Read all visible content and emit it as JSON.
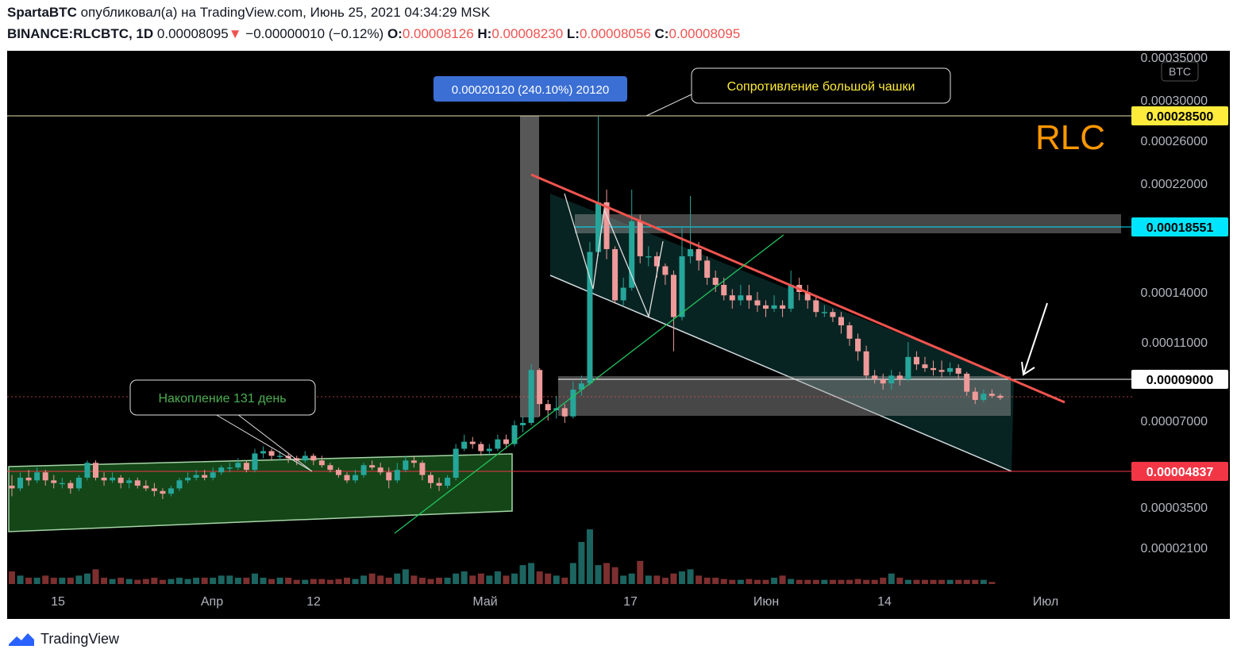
{
  "header": {
    "author": "SpartaBTC",
    "published_text": "опубликовал(а) на TradingView.com, Июнь 25, 2021 04:34:29 MSK",
    "symbol": "BINANCE:RLCBTC, 1D",
    "last": "0.00008095",
    "change_arrow": "▼",
    "change": "−0.00000010 (−0.12%)",
    "o_label": "O:",
    "o_value": "0.00008126",
    "h_label": "H:",
    "h_value": "0.00008230",
    "l_label": "L:",
    "l_value": "0.00008056",
    "c_label": "C:",
    "c_value": "0.00008095"
  },
  "footer": {
    "brand": "TradingView"
  },
  "chart_data": {
    "type": "candlestick",
    "currency_label": "BTC",
    "watermark": "RLC",
    "y_ticks": [
      "0.00035000",
      "0.00030000",
      "0.00026000",
      "0.00022000",
      "0.00014000",
      "0.00011000",
      "0.00007000",
      "0.00003500",
      "0.00002100"
    ],
    "y_tick_values": [
      0.00035,
      0.0003,
      0.00026,
      0.00022,
      0.00014,
      0.00011,
      7e-05,
      3.5e-05,
      2.1e-05
    ],
    "x_ticks": [
      "15",
      "Апр",
      "12",
      "Май",
      "17",
      "Июн",
      "14",
      "Июл"
    ],
    "price_labels": [
      {
        "text": "0.00028500",
        "value": 0.000285,
        "color": "#ffeb3b",
        "text_color": "#000000"
      },
      {
        "text": "0.00018551",
        "value": 0.00018551,
        "color": "#00e5ff",
        "text_color": "#000000"
      },
      {
        "text": "0.00009000",
        "value": 9e-05,
        "color": "#ffffff",
        "text_color": "#000000"
      },
      {
        "text": "0.00004837",
        "value": 4.837e-05,
        "color": "#f23645",
        "text_color": "#ffffff"
      }
    ],
    "annotations": {
      "measure": "0.00020120 (240.10%) 20120",
      "resistance": "Сопротивление большой чашки",
      "accumulation": "Накопление 131 день"
    },
    "colors": {
      "up": "#26a69a",
      "down": "#ef9a9a",
      "trend": "#f0544f",
      "support": "#22c55e"
    },
    "candles": [
      [
        4.3,
        4.2,
        4.7,
        3.9
      ],
      [
        4.2,
        4.6,
        4.8,
        4.1
      ],
      [
        4.6,
        4.5,
        4.9,
        4.3
      ],
      [
        4.5,
        4.8,
        5.0,
        4.4
      ],
      [
        4.8,
        4.5,
        4.9,
        4.3
      ],
      [
        4.5,
        4.4,
        4.7,
        4.2
      ],
      [
        4.4,
        4.4,
        4.6,
        4.2
      ],
      [
        4.4,
        4.2,
        4.5,
        4.0
      ],
      [
        4.2,
        4.6,
        4.7,
        4.1
      ],
      [
        4.6,
        5.2,
        5.3,
        4.5
      ],
      [
        5.2,
        4.6,
        5.3,
        4.5
      ],
      [
        4.6,
        4.5,
        4.8,
        4.3
      ],
      [
        4.5,
        4.6,
        4.8,
        4.4
      ],
      [
        4.6,
        4.4,
        4.7,
        4.2
      ],
      [
        4.4,
        4.5,
        4.6,
        4.2
      ],
      [
        4.5,
        4.3,
        4.6,
        4.2
      ],
      [
        4.3,
        4.2,
        4.5,
        4.1
      ],
      [
        4.2,
        4.1,
        4.4,
        3.9
      ],
      [
        4.1,
        4.0,
        4.2,
        3.8
      ],
      [
        4.0,
        4.2,
        4.3,
        3.9
      ],
      [
        4.2,
        4.5,
        4.6,
        4.1
      ],
      [
        4.5,
        4.6,
        4.8,
        4.4
      ],
      [
        4.6,
        4.7,
        4.9,
        4.5
      ],
      [
        4.7,
        4.6,
        4.9,
        4.5
      ],
      [
        4.6,
        4.8,
        5.0,
        4.5
      ],
      [
        4.8,
        5.0,
        5.1,
        4.7
      ],
      [
        5.0,
        5.0,
        5.2,
        4.8
      ],
      [
        5.0,
        5.2,
        5.4,
        4.9
      ],
      [
        5.2,
        4.9,
        5.3,
        4.8
      ],
      [
        4.9,
        5.6,
        5.8,
        4.8
      ],
      [
        5.6,
        5.7,
        5.9,
        5.4
      ],
      [
        5.7,
        5.5,
        5.8,
        5.3
      ],
      [
        5.5,
        5.5,
        5.7,
        5.3
      ],
      [
        5.5,
        5.4,
        5.6,
        5.2
      ],
      [
        5.4,
        5.3,
        5.5,
        5.1
      ],
      [
        5.3,
        5.5,
        5.7,
        5.2
      ],
      [
        5.5,
        5.3,
        5.6,
        5.1
      ],
      [
        5.3,
        5.1,
        5.5,
        5.0
      ],
      [
        5.1,
        4.9,
        5.2,
        4.8
      ],
      [
        4.9,
        4.7,
        5.0,
        4.6
      ],
      [
        4.7,
        4.5,
        4.8,
        4.4
      ],
      [
        4.5,
        4.7,
        4.9,
        4.4
      ],
      [
        4.7,
        5.1,
        5.2,
        4.6
      ],
      [
        5.1,
        5.0,
        5.3,
        4.9
      ],
      [
        5.0,
        4.8,
        5.2,
        4.7
      ],
      [
        4.8,
        4.5,
        5.0,
        4.2
      ],
      [
        4.5,
        4.9,
        5.2,
        4.4
      ],
      [
        4.9,
        5.3,
        5.5,
        4.8
      ],
      [
        5.3,
        5.2,
        5.5,
        5.0
      ],
      [
        5.2,
        4.7,
        5.3,
        4.5
      ],
      [
        4.7,
        4.4,
        4.8,
        4.2
      ],
      [
        4.4,
        4.3,
        4.6,
        4.1
      ],
      [
        4.3,
        4.6,
        4.7,
        4.2
      ],
      [
        4.6,
        5.8,
        6.0,
        4.5
      ],
      [
        5.8,
        6.1,
        6.4,
        5.7
      ],
      [
        6.1,
        6.0,
        6.3,
        5.8
      ],
      [
        6.0,
        5.7,
        6.1,
        5.5
      ],
      [
        5.7,
        5.8,
        6.0,
        5.5
      ],
      [
        5.8,
        6.2,
        6.4,
        5.7
      ],
      [
        6.2,
        6.0,
        6.4,
        5.8
      ],
      [
        6.0,
        6.8,
        7.0,
        5.9
      ],
      [
        6.8,
        6.9,
        7.2,
        6.5
      ],
      [
        6.9,
        9.5,
        9.8,
        6.8
      ],
      [
        9.5,
        7.8,
        9.6,
        7.2
      ],
      [
        7.8,
        7.5,
        8.0,
        7.0
      ],
      [
        7.5,
        7.6,
        8.2,
        7.1
      ],
      [
        7.6,
        7.2,
        7.8,
        6.9
      ],
      [
        7.2,
        8.5,
        8.9,
        7.1
      ],
      [
        8.5,
        8.8,
        9.2,
        8.2
      ],
      [
        8.8,
        16.8,
        17.5,
        8.7
      ],
      [
        16.8,
        20.5,
        28.5,
        16.5
      ],
      [
        20.5,
        17.0,
        21.5,
        16.3
      ],
      [
        17.0,
        13.5,
        17.2,
        13.3
      ],
      [
        13.5,
        14.3,
        15.0,
        13.2
      ],
      [
        14.3,
        19.0,
        21.5,
        14.1
      ],
      [
        19.0,
        16.5,
        19.5,
        16.0
      ],
      [
        16.5,
        16.5,
        17.2,
        15.8
      ],
      [
        16.5,
        15.8,
        16.8,
        15.0
      ],
      [
        15.8,
        15.2,
        16.0,
        14.5
      ],
      [
        15.2,
        12.5,
        15.5,
        10.5
      ],
      [
        12.5,
        16.5,
        18.5,
        12.3
      ],
      [
        16.5,
        17.0,
        21.0,
        16.0
      ],
      [
        17.0,
        16.2,
        17.5,
        15.5
      ],
      [
        16.2,
        15.0,
        16.5,
        14.5
      ],
      [
        15.0,
        14.5,
        15.5,
        14.0
      ],
      [
        14.5,
        13.8,
        15.0,
        13.5
      ],
      [
        13.8,
        13.5,
        14.2,
        13.0
      ],
      [
        13.5,
        13.8,
        14.5,
        13.2
      ],
      [
        13.8,
        13.5,
        14.5,
        13.0
      ],
      [
        13.5,
        13.2,
        14.0,
        12.8
      ],
      [
        13.2,
        13.0,
        13.5,
        12.5
      ],
      [
        13.0,
        13.2,
        13.8,
        12.8
      ],
      [
        13.2,
        13.0,
        13.5,
        12.5
      ],
      [
        13.0,
        14.5,
        15.5,
        12.8
      ],
      [
        14.5,
        14.0,
        15.0,
        13.5
      ],
      [
        14.0,
        13.5,
        14.5,
        13.0
      ],
      [
        13.5,
        12.8,
        13.8,
        12.5
      ],
      [
        12.8,
        12.8,
        13.2,
        12.5
      ],
      [
        12.8,
        12.5,
        13.0,
        12.2
      ],
      [
        12.5,
        12.0,
        12.8,
        11.5
      ],
      [
        12.0,
        11.2,
        12.2,
        10.8
      ],
      [
        11.2,
        10.5,
        11.5,
        10.0
      ],
      [
        10.5,
        9.2,
        10.8,
        9.0
      ],
      [
        9.2,
        9.0,
        9.5,
        8.8
      ],
      [
        9.0,
        8.8,
        9.3,
        8.5
      ],
      [
        8.8,
        9.2,
        9.5,
        8.5
      ],
      [
        9.2,
        9.0,
        9.4,
        8.7
      ],
      [
        9.0,
        10.2,
        11.0,
        8.9
      ],
      [
        10.2,
        9.8,
        10.5,
        9.5
      ],
      [
        9.8,
        9.6,
        10.2,
        9.4
      ],
      [
        9.6,
        9.5,
        10.0,
        9.2
      ],
      [
        9.5,
        9.4,
        10.0,
        9.1
      ],
      [
        9.4,
        9.6,
        9.9,
        9.2
      ],
      [
        9.6,
        9.3,
        9.8,
        9.0
      ],
      [
        9.3,
        8.4,
        9.4,
        8.2
      ],
      [
        8.4,
        8.0,
        8.6,
        7.8
      ],
      [
        8.0,
        8.3,
        8.5,
        7.9
      ],
      [
        8.3,
        8.2,
        8.5,
        8.1
      ],
      [
        8.2,
        8.1,
        8.3,
        8.0
      ]
    ],
    "volumes": [
      3,
      2,
      1.5,
      1.5,
      2,
      1.5,
      1.5,
      1.5,
      2,
      2.5,
      3.5,
      1.5,
      1.2,
      1.5,
      1.2,
      1,
      1.2,
      1.5,
      1,
      1.2,
      1.5,
      1.2,
      1.5,
      1.5,
      1.5,
      2,
      2,
      1.5,
      1.5,
      2.5,
      1.5,
      1.2,
      1.5,
      1.5,
      1,
      1,
      1.2,
      1.2,
      1,
      1.2,
      1.5,
      1.2,
      2,
      2.5,
      2,
      1.5,
      2.5,
      3.5,
      2,
      1.5,
      1.2,
      1.5,
      1.5,
      2.5,
      3,
      2,
      2.5,
      2,
      3,
      2,
      2.5,
      4.5,
      5,
      3,
      2.5,
      2,
      1.5,
      5,
      10,
      13,
      4.5,
      5,
      4,
      2,
      2.5,
      5.5,
      2,
      2,
      1.5,
      2.5,
      3,
      3.5,
      2,
      1.5,
      1.5,
      1.2,
      1,
      1,
      1.2,
      1,
      1,
      1.5,
      2,
      1.2,
      1,
      1,
      1,
      1,
      1,
      1,
      1,
      1.2,
      1,
      1,
      1.5,
      2.5,
      1.5,
      1,
      1,
      1,
      1,
      1,
      1,
      1,
      1,
      1,
      1,
      0.5
    ]
  }
}
